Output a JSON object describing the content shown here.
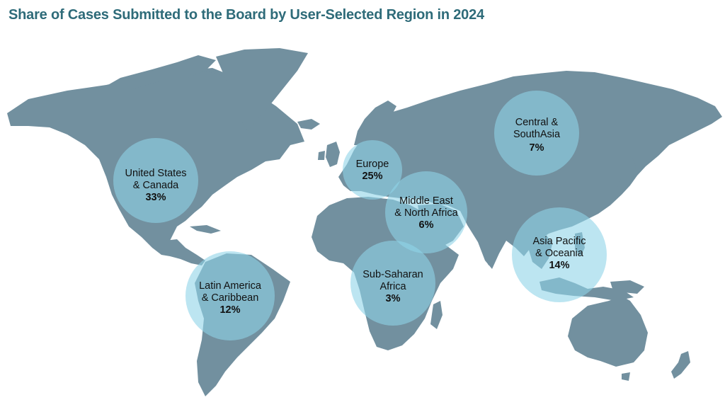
{
  "title": "Share of Cases Submitted to the Board by User-Selected Region in 2024",
  "colors": {
    "land": "#72909f",
    "bubble": "#8fd3e8",
    "title": "#2e6b79"
  },
  "regions": [
    {
      "key": "us-canada",
      "line1": "United States",
      "line2": "& Canada",
      "share": "33%"
    },
    {
      "key": "latin-america",
      "line1": "Latin America",
      "line2": "& Caribbean",
      "share": "12%"
    },
    {
      "key": "europe",
      "line1": "Europe",
      "line2": "",
      "share": "25%"
    },
    {
      "key": "mena",
      "line1": "Middle East",
      "line2": "& North Africa",
      "share": "6%"
    },
    {
      "key": "sub-saharan",
      "line1": "Sub-Saharan",
      "line2": "Africa",
      "share": "3%"
    },
    {
      "key": "central-south-asia",
      "line1": "Central &",
      "line2": "SouthAsia",
      "share": "7%"
    },
    {
      "key": "asia-pacific",
      "line1": "Asia Pacific",
      "line2": "& Oceania",
      "share": "14%"
    }
  ]
}
